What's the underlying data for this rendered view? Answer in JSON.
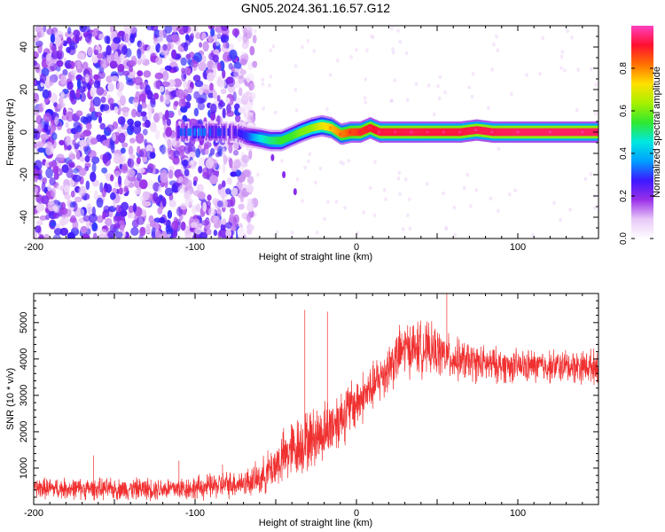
{
  "figure": {
    "title": "GN05.2024.361.16.57.G12"
  },
  "chart_data": [
    {
      "type": "heatmap",
      "xlabel": "Height of straight line (km)",
      "ylabel": "Frequency (Hz)",
      "xlim": [
        -200,
        150
      ],
      "ylim": [
        -50,
        50
      ],
      "xticks": [
        "-200",
        "-100",
        "0",
        "100"
      ],
      "yticks": [
        "-40",
        "-20",
        "0",
        "20",
        "40"
      ],
      "colorbar": {
        "label": "Normalized spectral amplitude",
        "range": [
          0,
          1
        ],
        "ticks": [
          "0.0",
          "0.2",
          "0.4",
          "0.6",
          "0.8"
        ],
        "colors": [
          "#ffffff",
          "#e8c8f8",
          "#9a30e8",
          "#3c18ff",
          "#00a0ff",
          "#00e8e0",
          "#30e830",
          "#a8f000",
          "#ffe000",
          "#ff7000",
          "#ff1030",
          "#ff40c0"
        ]
      },
      "noise_region": {
        "x": [
          -200,
          -63
        ],
        "y": [
          -50,
          50
        ],
        "amplitude": [
          0.05,
          0.3
        ]
      },
      "ridge": [
        {
          "x": -112,
          "y": 0,
          "amp": 0.3
        },
        {
          "x": -100,
          "y": 0,
          "amp": 0.35
        },
        {
          "x": -85,
          "y": 0,
          "amp": 0.3
        },
        {
          "x": -75,
          "y": 0,
          "amp": 0.25
        },
        {
          "x": -68,
          "y": -2,
          "amp": 0.3
        },
        {
          "x": -60,
          "y": -3,
          "amp": 0.45
        },
        {
          "x": -54,
          "y": -4,
          "amp": 0.5
        },
        {
          "x": -47,
          "y": -4,
          "amp": 0.55
        },
        {
          "x": -41,
          "y": -2,
          "amp": 0.55
        },
        {
          "x": -35,
          "y": 0,
          "amp": 0.6
        },
        {
          "x": -28,
          "y": 2,
          "amp": 0.62
        },
        {
          "x": -22,
          "y": 3,
          "amp": 0.7
        },
        {
          "x": -16,
          "y": 2,
          "amp": 0.75
        },
        {
          "x": -10,
          "y": -1,
          "amp": 0.8
        },
        {
          "x": -4,
          "y": 0,
          "amp": 0.85
        },
        {
          "x": 2,
          "y": 0,
          "amp": 0.88
        },
        {
          "x": 8,
          "y": 2,
          "amp": 0.9
        },
        {
          "x": 14,
          "y": 0,
          "amp": 0.92
        },
        {
          "x": 24,
          "y": 0,
          "amp": 0.92
        },
        {
          "x": 34,
          "y": 0,
          "amp": 0.93
        },
        {
          "x": 44,
          "y": 0,
          "amp": 0.92
        },
        {
          "x": 54,
          "y": 0,
          "amp": 0.92
        },
        {
          "x": 64,
          "y": 0,
          "amp": 0.92
        },
        {
          "x": 74,
          "y": 1,
          "amp": 0.93
        },
        {
          "x": 84,
          "y": 0,
          "amp": 0.93
        },
        {
          "x": 100,
          "y": 0,
          "amp": 0.94
        },
        {
          "x": 120,
          "y": 0,
          "amp": 0.94
        },
        {
          "x": 140,
          "y": 0,
          "amp": 0.94
        },
        {
          "x": 150,
          "y": 0,
          "amp": 0.94
        }
      ],
      "mirror_tail": [
        {
          "x": -52,
          "y": -12
        },
        {
          "x": -45,
          "y": -20
        },
        {
          "x": -38,
          "y": -28
        }
      ]
    },
    {
      "type": "line",
      "xlabel": "Height of straight line (km)",
      "ylabel": "SNR (10 * v/v)",
      "xlim": [
        -200,
        150
      ],
      "ylim": [
        0,
        5800
      ],
      "xticks": [
        "-200",
        "-100",
        "0",
        "100"
      ],
      "yticks": [
        "1000",
        "2000",
        "3000",
        "4000",
        "5000"
      ],
      "color": "#f03030",
      "envelope": {
        "x": [
          -200,
          -150,
          -100,
          -80,
          -70,
          -60,
          -50,
          -40,
          -30,
          -20,
          -10,
          0,
          10,
          20,
          30,
          40,
          50,
          60,
          80,
          100,
          120,
          150
        ],
        "mean": [
          450,
          420,
          450,
          550,
          600,
          700,
          1100,
          1500,
          1750,
          2000,
          2400,
          2800,
          3200,
          3800,
          4300,
          4300,
          4200,
          4000,
          3850,
          3800,
          3800,
          3800
        ],
        "spread": [
          350,
          350,
          400,
          450,
          450,
          550,
          800,
          1000,
          1000,
          1000,
          1000,
          900,
          800,
          900,
          900,
          900,
          800,
          700,
          600,
          550,
          550,
          550
        ]
      },
      "spikes": [
        {
          "x": -163,
          "y": 1350
        },
        {
          "x": -110,
          "y": 1200
        },
        {
          "x": -83,
          "y": 1100
        },
        {
          "x": -32,
          "y": 5350
        },
        {
          "x": -18,
          "y": 5300
        },
        {
          "x": 56,
          "y": 5800
        }
      ]
    }
  ]
}
